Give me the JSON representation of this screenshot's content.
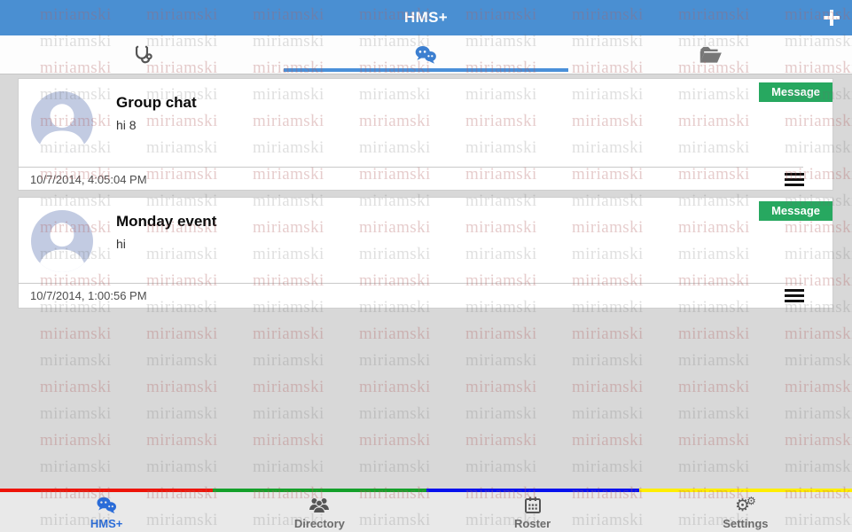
{
  "header": {
    "title": "HMS+"
  },
  "tabs": [
    {
      "name": "patients",
      "icon": "stethoscope-icon",
      "active": false
    },
    {
      "name": "messages",
      "icon": "chat-bubbles-icon",
      "active": true
    },
    {
      "name": "files",
      "icon": "folder-open-icon",
      "active": false
    }
  ],
  "conversations": [
    {
      "title": "Group chat",
      "preview": "hi 8",
      "timestamp": "10/7/2014, 4:05:04 PM",
      "action_label": "Message"
    },
    {
      "title": "Monday event",
      "preview": "hi",
      "timestamp": "10/7/2014, 1:00:56 PM",
      "action_label": "Message"
    }
  ],
  "bottom_nav": {
    "stripe_colors": [
      "#ee1408",
      "#14a02a",
      "#0611ee",
      "#ffee00"
    ],
    "items": [
      {
        "label": "HMS+",
        "icon": "chat-bubbles-icon",
        "active": true
      },
      {
        "label": "Directory",
        "icon": "people-group-icon",
        "active": false
      },
      {
        "label": "Roster",
        "icon": "roster-grid-icon",
        "active": false
      },
      {
        "label": "Settings",
        "icon": "gears-icon",
        "active": false
      }
    ]
  },
  "watermark": {
    "text": "miriamski",
    "row_colors": [
      "rgba(178,96,96,0.32)",
      "rgba(110,110,110,0.22)"
    ],
    "col_start": 45,
    "col_step": 120,
    "row_start": 6,
    "row_step": 30,
    "cols": 8,
    "rows": 20
  },
  "colors": {
    "header_bg": "#4a8fd2",
    "accent_blue": "#3c7fd0",
    "active_tab_underline": "#4a90d9",
    "message_green": "#27a860",
    "active_nav_blue": "#2a6cd8"
  }
}
